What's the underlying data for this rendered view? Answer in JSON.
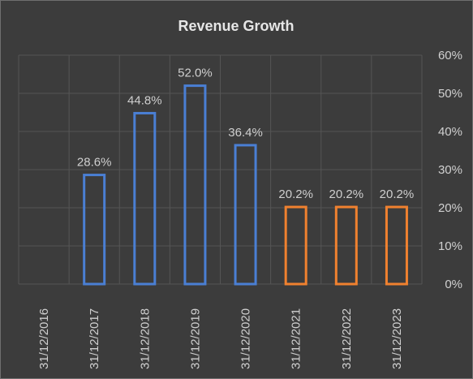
{
  "chart_data": {
    "type": "bar",
    "title": "Revenue Growth",
    "xlabel": "",
    "ylabel": "",
    "categories": [
      "31/12/2016",
      "31/12/2017",
      "31/12/2018",
      "31/12/2019",
      "31/12/2020",
      "31/12/2021",
      "31/12/2022",
      "31/12/2023"
    ],
    "values": [
      null,
      28.6,
      44.8,
      52.0,
      36.4,
      20.2,
      20.2,
      20.2
    ],
    "data_labels": [
      "",
      "28.6%",
      "44.8%",
      "52.0%",
      "36.4%",
      "20.2%",
      "20.2%",
      "20.2%"
    ],
    "bar_colors": [
      "#4a7fd4",
      "#4a7fd4",
      "#4a7fd4",
      "#4a7fd4",
      "#4a7fd4",
      "#f0812f",
      "#f0812f",
      "#f0812f"
    ],
    "ylim": [
      0,
      60
    ],
    "yticks": [
      0,
      10,
      20,
      30,
      40,
      50,
      60
    ],
    "ytick_labels": [
      "0%",
      "10%",
      "20%",
      "30%",
      "40%",
      "50%",
      "60%"
    ],
    "y_axis_position": "right",
    "grid": true,
    "legend": "none",
    "colors": {
      "background": "#3c3c3c",
      "grid": "#555555",
      "actual": "#4a7fd4",
      "forecast": "#f0812f"
    }
  }
}
